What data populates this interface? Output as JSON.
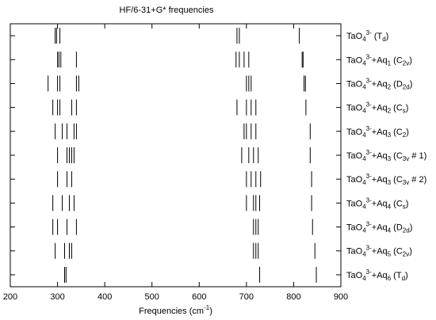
{
  "chart_data": {
    "type": "spectrum",
    "title": "HF/6-31+G* frequencies",
    "xlabel": [
      [
        "Frequencies (cm",
        ""
      ],
      [
        "-1",
        "sup"
      ],
      [
        ")",
        ""
      ]
    ],
    "xlim": [
      200,
      900
    ],
    "xticks": [
      200,
      300,
      400,
      500,
      600,
      700,
      800,
      900
    ],
    "color": "#000000",
    "rows": [
      {
        "label": [
          [
            "TaO",
            ""
          ],
          [
            "4",
            "sub"
          ],
          [
            "3-",
            "sup"
          ],
          [
            " (T",
            ""
          ],
          [
            "d",
            "sub"
          ],
          [
            ")",
            ""
          ]
        ],
        "values": [
          295,
          298,
          305,
          680,
          685,
          812
        ]
      },
      {
        "label": [
          [
            "TaO",
            ""
          ],
          [
            "4",
            "sub"
          ],
          [
            "3-",
            "sup"
          ],
          [
            "+Aq",
            ""
          ],
          [
            "1",
            "sub"
          ],
          [
            " (C",
            ""
          ],
          [
            "2v",
            "sub"
          ],
          [
            ")",
            ""
          ]
        ],
        "values": [
          300,
          303,
          307,
          340,
          678,
          685,
          695,
          705,
          818,
          820
        ]
      },
      {
        "label": [
          [
            "TaO",
            ""
          ],
          [
            "4",
            "sub"
          ],
          [
            "3-",
            "sup"
          ],
          [
            "+Aq",
            ""
          ],
          [
            "2",
            "sub"
          ],
          [
            " (D",
            ""
          ],
          [
            "2d",
            "sub"
          ],
          [
            ")",
            ""
          ]
        ],
        "values": [
          280,
          300,
          305,
          340,
          345,
          700,
          705,
          710,
          822,
          825
        ]
      },
      {
        "label": [
          [
            "TaO",
            ""
          ],
          [
            "4",
            "sub"
          ],
          [
            "3-",
            "sup"
          ],
          [
            "+Aq",
            ""
          ],
          [
            "2",
            "sub"
          ],
          [
            " (C",
            ""
          ],
          [
            "s",
            "sub"
          ],
          [
            ")",
            ""
          ]
        ],
        "values": [
          290,
          300,
          305,
          330,
          340,
          680,
          700,
          710,
          720,
          826
        ]
      },
      {
        "label": [
          [
            "TaO",
            ""
          ],
          [
            "4",
            "sub"
          ],
          [
            "3-",
            "sup"
          ],
          [
            "+Aq",
            ""
          ],
          [
            "3",
            "sub"
          ],
          [
            " (C",
            ""
          ],
          [
            "2",
            "sub"
          ],
          [
            ")",
            ""
          ]
        ],
        "values": [
          295,
          310,
          320,
          335,
          340,
          695,
          700,
          710,
          720,
          835
        ]
      },
      {
        "label": [
          [
            "TaO",
            ""
          ],
          [
            "4",
            "sub"
          ],
          [
            "3-",
            "sup"
          ],
          [
            "+Aq",
            ""
          ],
          [
            "3",
            "sub"
          ],
          [
            " (C",
            ""
          ],
          [
            "3v",
            "sub"
          ],
          [
            " # 1)",
            ""
          ]
        ],
        "values": [
          300,
          320,
          325,
          330,
          335,
          690,
          705,
          715,
          725,
          835
        ]
      },
      {
        "label": [
          [
            "TaO",
            ""
          ],
          [
            "4",
            "sub"
          ],
          [
            "3-",
            "sup"
          ],
          [
            "+Aq",
            ""
          ],
          [
            "3",
            "sub"
          ],
          [
            " (C",
            ""
          ],
          [
            "3v",
            "sub"
          ],
          [
            " # 2)",
            ""
          ]
        ],
        "values": [
          300,
          320,
          330,
          700,
          710,
          720,
          730,
          838
        ]
      },
      {
        "label": [
          [
            "TaO",
            ""
          ],
          [
            "4",
            "sub"
          ],
          [
            "3-",
            "sup"
          ],
          [
            "+Aq",
            ""
          ],
          [
            "4",
            "sub"
          ],
          [
            " (C",
            ""
          ],
          [
            "s",
            "sub"
          ],
          [
            ")",
            ""
          ]
        ],
        "values": [
          290,
          310,
          325,
          335,
          700,
          715,
          720,
          728,
          838
        ]
      },
      {
        "label": [
          [
            "TaO",
            ""
          ],
          [
            "4",
            "sub"
          ],
          [
            "3-",
            "sup"
          ],
          [
            "+Aq",
            ""
          ],
          [
            "4",
            "sub"
          ],
          [
            " (D",
            ""
          ],
          [
            "2d",
            "sub"
          ],
          [
            ")",
            ""
          ]
        ],
        "values": [
          290,
          300,
          320,
          340,
          715,
          720,
          725,
          840
        ]
      },
      {
        "label": [
          [
            "TaO",
            ""
          ],
          [
            "4",
            "sub"
          ],
          [
            "3-",
            "sup"
          ],
          [
            "+Aq",
            ""
          ],
          [
            "5",
            "sub"
          ],
          [
            " (C",
            ""
          ],
          [
            "2v",
            "sub"
          ],
          [
            ")",
            ""
          ]
        ],
        "values": [
          295,
          315,
          325,
          330,
          715,
          720,
          725,
          845
        ]
      },
      {
        "label": [
          [
            "TaO",
            ""
          ],
          [
            "4",
            "sub"
          ],
          [
            "3-",
            "sup"
          ],
          [
            "+Aq",
            ""
          ],
          [
            "6",
            "sub"
          ],
          [
            " (T",
            ""
          ],
          [
            "d",
            "sub"
          ],
          [
            ")",
            ""
          ]
        ],
        "values": [
          315,
          318,
          728,
          848
        ]
      }
    ]
  }
}
